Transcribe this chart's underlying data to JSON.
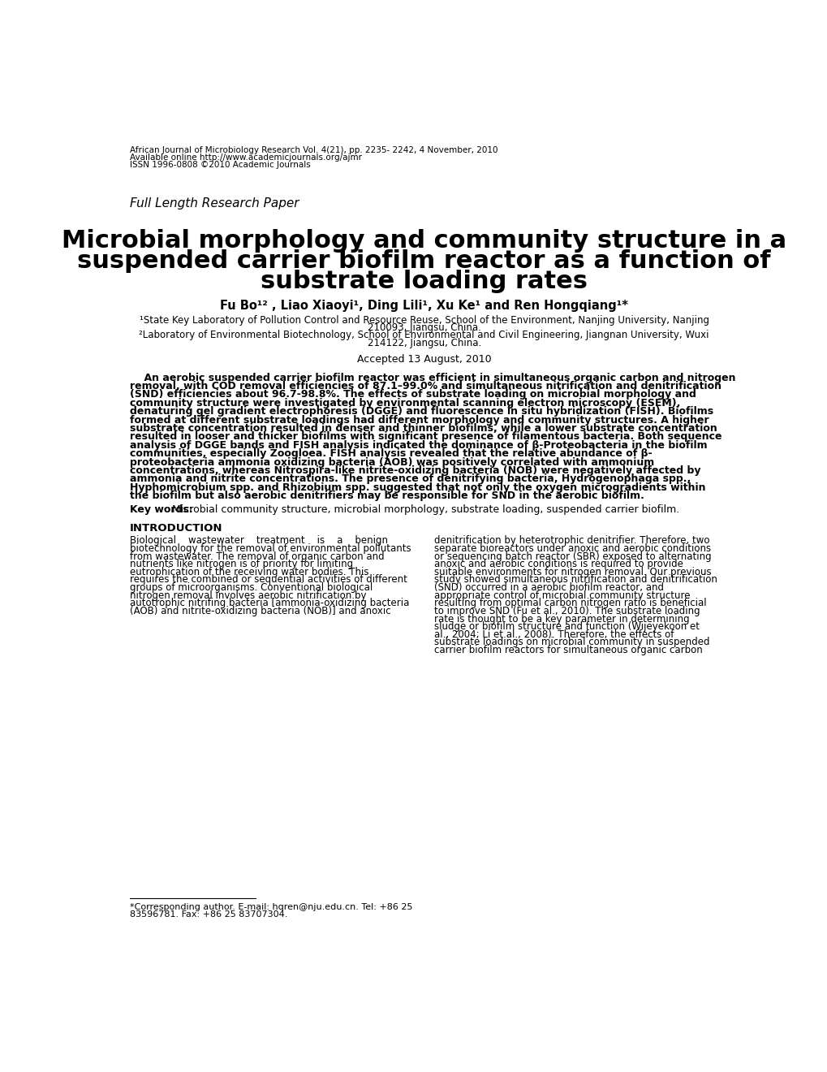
{
  "background_color": "#ffffff",
  "header_line1": "African Journal of Microbiology Research Vol. 4(21), pp. 2235- 2242, 4 November, 2010",
  "header_line2": "Available online http://www.academicjournals.org/ajmr",
  "header_line3": "ISSN 1996-0808 ©2010 Academic Journals",
  "label_full_length": "Full Length Research Paper",
  "title_line1": "Microbial morphology and community structure in a",
  "title_line2": "suspended carrier biofilm reactor as a function of",
  "title_line3": "substrate loading rates",
  "authors": "Fu Bo¹² , Liao Xiaoyi¹, Ding Lili¹, Xu Ke¹ and Ren Hongqiang¹*",
  "affil1": "¹State Key Laboratory of Pollution Control and Resource Reuse, School of the Environment, Nanjing University, Nanjing",
  "affil1b": "210093, Jiangsu, China.",
  "affil2": "²Laboratory of Environmental Biotechnology, School of Environmental and Civil Engineering, Jiangnan University, Wuxi",
  "affil2b": "214122, Jiangsu, China.",
  "accepted": "Accepted 13 August, 2010",
  "keywords_label": "Key words:",
  "keywords_text": " Microbial community structure, microbial morphology, substrate loading, suspended carrier biofilm.",
  "intro_heading": "INTRODUCTION",
  "footnote_line1": "*Corresponding author. E-mail: hqren@nju.edu.cn. Tel: +86 25",
  "footnote_line2": "83596781. Fax: +86 25 83707304.",
  "abstract_lines": [
    "    An aerobic suspended carrier biofilm reactor was efficient in simultaneous organic carbon and nitrogen",
    "removal, with COD removal efficiencies of 87.1–99.0% and simultaneous nitrification and denitrification",
    "(SND) efficiencies about 96.7-98.8%. The effects of substrate loading on microbial morphology and",
    "community structure were investigated by environmental scanning electron microscopy (ESEM),",
    "denaturing gel gradient electrophoresis (DGGE) and fluorescence in situ hybridization (FISH). Biofilms",
    "formed at different substrate loadings had different morphology and community structures. A higher",
    "substrate concentration resulted in denser and thinner biofilms, while a lower substrate concentration",
    "resulted in looser and thicker biofilms with significant presence of filamentous bacteria. Both sequence",
    "analysis of DGGE bands and FISH analysis indicated the dominance of β-Proteobacteria in the biofilm",
    "communities, especially Zoogloea. FISH analysis revealed that the relative abundance of β-",
    "proteobacteria ammonia oxidizing bacteria (AOB) was positively correlated with ammonium",
    "concentrations, whereas Nitrospira-like nitrite-oxidizing bacteria (NOB) were negatively affected by",
    "ammonia and nitrite concentrations. The presence of denitrifying bacteria, Hydrogenophaga spp.,",
    "Hyphomicrobium spp. and Rhizobium spp. suggested that not only the oxygen microgradients within",
    "the biofilm but also aerobic denitrifiers may be responsible for SND in the aerobic biofilm."
  ],
  "col1_lines": [
    "Biological    wastewater    treatment    is    a    benign",
    "biotechnology for the removal of environmental pollutants",
    "from wastewater. The removal of organic carbon and",
    "nutrients like nitrogen is of priority for limiting",
    "eutrophication of the receiving water bodies. This",
    "requires the combined or sequential activities of different",
    "groups of microorganisms. Conventional biological",
    "nitrogen removal involves aerobic nitrification by",
    "autotrophic nitrifing bacteria [ammonia-oxidizing bacteria",
    "(AOB) and nitrite-oxidizing bacteria (NOB)] and anoxic"
  ],
  "col2_lines": [
    "denitrification by heterotrophic denitrifier. Therefore, two",
    "separate bioreactors under anoxic and aerobic conditions",
    "or sequencing batch reactor (SBR) exposed to alternating",
    "anoxic and aerobic conditions is required to provide",
    "suitable environments for nitrogen removal. Our previous",
    "study showed simultaneous nitrification and denitrification",
    "(SND) occurred in a aerobic biofilm reactor, and",
    "appropriate control of microbial community structure",
    "resulting from optimal carbon nitrogen ratio is beneficial",
    "to improve SND (Fu et al., 2010). The substrate loading",
    "rate is thought to be a key parameter in determining",
    "sludge or biofilm structure and function (Wijeyekoon et",
    "al., 2004; Li et al., 2008). Therefore, the effects of",
    "substrate loadings on microbial community in suspended",
    "carrier biofilm reactors for simultaneous organic carbon"
  ]
}
